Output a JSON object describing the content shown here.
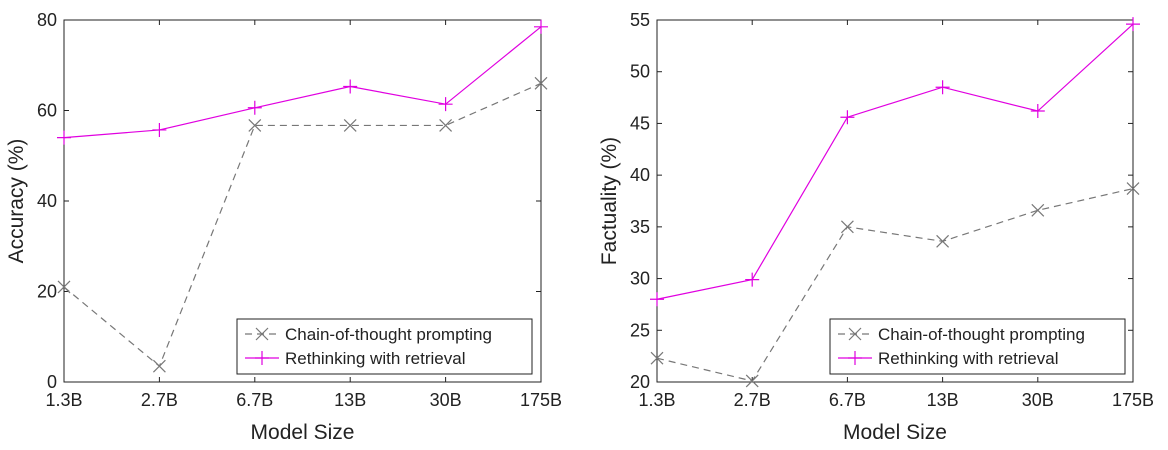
{
  "chart_data": [
    {
      "type": "line",
      "categories": [
        "1.3B",
        "2.7B",
        "6.7B",
        "13B",
        "30B",
        "175B"
      ],
      "xlabel": "Model Size",
      "ylabel": "Accuracy (%)",
      "ylim": [
        0,
        80
      ],
      "yticks": [
        0,
        20,
        40,
        60,
        80
      ],
      "grid": false,
      "legend": "bottom-right",
      "series": [
        {
          "name": "Chain-of-thought prompting",
          "values": [
            21,
            3.5,
            56.7,
            56.7,
            56.7,
            66
          ],
          "color": "#777777",
          "marker": "x",
          "dash": "dashed"
        },
        {
          "name": "Rethinking with retrieval",
          "values": [
            54,
            55.7,
            60.6,
            65.3,
            61.4,
            78.5
          ],
          "color": "#e000e0",
          "marker": "+",
          "dash": "solid"
        }
      ]
    },
    {
      "type": "line",
      "categories": [
        "1.3B",
        "2.7B",
        "6.7B",
        "13B",
        "30B",
        "175B"
      ],
      "xlabel": "Model Size",
      "ylabel": "Factuality (%)",
      "ylim": [
        20,
        55
      ],
      "yticks": [
        20,
        25,
        30,
        35,
        40,
        45,
        50,
        55
      ],
      "grid": false,
      "legend": "bottom-right",
      "series": [
        {
          "name": "Chain-of-thought prompting",
          "values": [
            22.3,
            20.1,
            35,
            33.6,
            36.6,
            38.7
          ],
          "color": "#777777",
          "marker": "x",
          "dash": "dashed"
        },
        {
          "name": "Rethinking with retrieval",
          "values": [
            28,
            29.9,
            45.6,
            48.5,
            46.2,
            54.6
          ],
          "color": "#e000e0",
          "marker": "+",
          "dash": "solid"
        }
      ]
    }
  ]
}
